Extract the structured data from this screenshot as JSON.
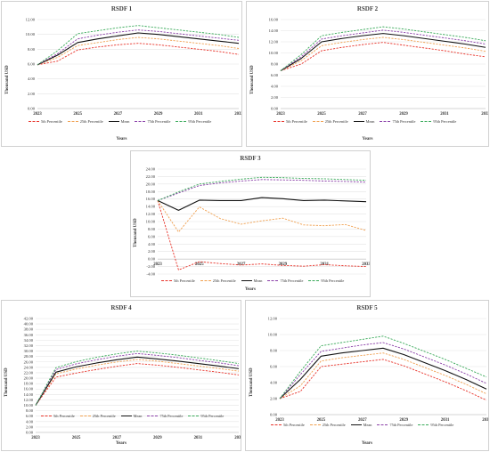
{
  "colors": {
    "p5": "#e8332a",
    "p25": "#f0a050",
    "mean": "#111111",
    "p75": "#8a3fa8",
    "p95": "#3aaa5a",
    "grid": "#e4e4e4",
    "axis": "#bbbbbb"
  },
  "legend_labels": [
    "5th Percentile",
    "25th Percentile",
    "Mean",
    "75th Percentile",
    "95th Percentile"
  ],
  "chart_data": [
    {
      "type": "line",
      "title": "RSDF 1",
      "xlabel": "Years",
      "ylabel": "Thousand USD",
      "x": [
        2023,
        2024,
        2025,
        2026,
        2027,
        2028,
        2029,
        2030,
        2031,
        2032,
        2033
      ],
      "xticks": [
        "2023",
        "2025",
        "2027",
        "2029",
        "2031",
        "2033"
      ],
      "yticks": [
        "0.00",
        "2.00",
        "4.00",
        "6.00",
        "8.00",
        "10.00",
        "12.00"
      ],
      "ylim": [
        0,
        12
      ],
      "series": [
        {
          "name": "5th Percentile",
          "values": [
            5.9,
            6.4,
            7.9,
            8.3,
            8.6,
            8.8,
            8.6,
            8.3,
            8.0,
            7.7,
            7.3
          ]
        },
        {
          "name": "25th Percentile",
          "values": [
            5.9,
            6.9,
            8.5,
            8.9,
            9.3,
            9.6,
            9.4,
            9.1,
            8.8,
            8.5,
            8.1
          ]
        },
        {
          "name": "Mean",
          "values": [
            5.9,
            7.2,
            8.9,
            9.4,
            9.8,
            10.2,
            10.0,
            9.7,
            9.4,
            9.1,
            8.8
          ]
        },
        {
          "name": "75th Percentile",
          "values": [
            5.9,
            7.4,
            9.4,
            9.9,
            10.3,
            10.6,
            10.4,
            10.1,
            9.8,
            9.5,
            9.2
          ]
        },
        {
          "name": "95th Percentile",
          "values": [
            5.9,
            7.8,
            10.1,
            10.5,
            10.9,
            11.2,
            10.9,
            10.6,
            10.3,
            10.0,
            9.6
          ]
        }
      ],
      "grid": true,
      "legend": "bottom"
    },
    {
      "type": "line",
      "title": "RSDF 2",
      "xlabel": "Years",
      "ylabel": "Thousand USD",
      "x": [
        2023,
        2024,
        2025,
        2026,
        2027,
        2028,
        2029,
        2030,
        2031,
        2032,
        2033
      ],
      "xticks": [
        "2023",
        "2025",
        "2027",
        "2029",
        "2031",
        "2033"
      ],
      "yticks": [
        "0.00",
        "2.00",
        "4.00",
        "6.00",
        "8.00",
        "10.00",
        "12.00",
        "14.00",
        "16.00"
      ],
      "ylim": [
        0,
        16
      ],
      "series": [
        {
          "name": "5th Percentile",
          "values": [
            6.8,
            8.0,
            10.4,
            11.0,
            11.5,
            11.9,
            11.4,
            10.9,
            10.4,
            9.8,
            9.3
          ]
        },
        {
          "name": "25th Percentile",
          "values": [
            6.8,
            8.6,
            11.3,
            11.9,
            12.4,
            12.8,
            12.4,
            11.9,
            11.4,
            10.9,
            10.3
          ]
        },
        {
          "name": "Mean",
          "values": [
            6.8,
            9.0,
            12.0,
            12.6,
            13.1,
            13.5,
            13.1,
            12.6,
            12.1,
            11.6,
            11.0
          ]
        },
        {
          "name": "75th Percentile",
          "values": [
            6.8,
            9.3,
            12.5,
            13.1,
            13.6,
            14.1,
            13.7,
            13.2,
            12.7,
            12.2,
            11.6
          ]
        },
        {
          "name": "95th Percentile",
          "values": [
            6.8,
            9.7,
            13.1,
            13.7,
            14.2,
            14.7,
            14.3,
            13.8,
            13.3,
            12.8,
            12.2
          ]
        }
      ],
      "grid": true,
      "legend": "bottom"
    },
    {
      "type": "line",
      "title": "RSDF 3",
      "xlabel": "Years",
      "ylabel": "Thousand USD",
      "x": [
        2023,
        2024,
        2025,
        2026,
        2027,
        2028,
        2029,
        2030,
        2031,
        2032,
        2033
      ],
      "xticks": [
        "2023",
        "2025",
        "2027",
        "2029",
        "2031",
        "2033"
      ],
      "yticks": [
        "-4.00",
        "-2.00",
        "0.00",
        "2.00",
        "4.00",
        "6.00",
        "8.00",
        "10.00",
        "12.00",
        "14.00",
        "16.00",
        "18.00",
        "20.00",
        "22.00",
        "24.00"
      ],
      "ylim": [
        -4,
        24
      ],
      "series": [
        {
          "name": "5th Percentile",
          "values": [
            15.6,
            -2.9,
            -0.7,
            -1.2,
            -1.6,
            -1.3,
            -1.7,
            -1.9,
            -1.5,
            -1.8,
            -2.0
          ]
        },
        {
          "name": "25th Percentile",
          "values": [
            15.6,
            7.2,
            13.9,
            10.8,
            9.3,
            10.2,
            10.9,
            9.1,
            8.9,
            9.2,
            7.6
          ]
        },
        {
          "name": "Mean",
          "values": [
            15.6,
            13.0,
            15.7,
            15.6,
            15.6,
            16.4,
            16.1,
            15.6,
            15.7,
            15.5,
            15.3
          ]
        },
        {
          "name": "75th Percentile",
          "values": [
            15.6,
            17.6,
            19.6,
            20.3,
            20.8,
            21.2,
            21.1,
            21.0,
            20.8,
            20.7,
            20.5
          ]
        },
        {
          "name": "95th Percentile",
          "values": [
            15.6,
            17.9,
            20.0,
            20.7,
            21.3,
            21.8,
            21.7,
            21.5,
            21.4,
            21.2,
            21.0
          ]
        }
      ],
      "grid": true,
      "legend": "bottom"
    },
    {
      "type": "line",
      "title": "RSDF 4",
      "xlabel": "Years",
      "ylabel": "Thousand USD",
      "x": [
        2023,
        2024,
        2025,
        2026,
        2027,
        2028,
        2029,
        2030,
        2031,
        2032,
        2033
      ],
      "xticks": [
        "2023",
        "2025",
        "2027",
        "2029",
        "2031",
        "2033"
      ],
      "yticks": [
        "0.00",
        "2.00",
        "4.00",
        "6.00",
        "8.00",
        "10.00",
        "12.00",
        "14.00",
        "16.00",
        "18.00",
        "20.00",
        "22.00",
        "24.00",
        "26.00",
        "28.00",
        "30.00",
        "32.00",
        "34.00",
        "36.00",
        "38.00",
        "40.00",
        "42.00"
      ],
      "ylim": [
        0,
        42
      ],
      "series": [
        {
          "name": "5th Percentile",
          "values": [
            10.0,
            20.4,
            21.9,
            23.2,
            24.4,
            25.4,
            24.8,
            24.0,
            23.1,
            22.2,
            21.2
          ]
        },
        {
          "name": "25th Percentile",
          "values": [
            10.0,
            21.6,
            23.4,
            24.8,
            26.0,
            26.9,
            26.3,
            25.4,
            24.5,
            23.6,
            22.6
          ]
        },
        {
          "name": "Mean",
          "values": [
            10.0,
            22.2,
            24.2,
            25.6,
            26.8,
            27.8,
            27.1,
            26.3,
            25.4,
            24.5,
            23.5
          ]
        },
        {
          "name": "75th Percentile",
          "values": [
            10.0,
            23.2,
            25.3,
            26.8,
            28.1,
            29.1,
            28.4,
            27.6,
            26.6,
            25.7,
            24.6
          ]
        },
        {
          "name": "95th Percentile",
          "values": [
            10.0,
            23.9,
            26.1,
            27.7,
            29.0,
            30.0,
            29.3,
            28.5,
            27.5,
            26.5,
            25.4
          ]
        }
      ],
      "grid": true,
      "legend": "bottom"
    },
    {
      "type": "line",
      "title": "RSDF 5",
      "xlabel": "Years",
      "ylabel": "Thousand USD",
      "x": [
        2023,
        2024,
        2025,
        2026,
        2027,
        2028,
        2029,
        2030,
        2031,
        2032,
        2033
      ],
      "xticks": [
        "2023",
        "2025",
        "2027",
        "2029",
        "2031",
        "2033"
      ],
      "yticks": [
        "0.00",
        "2.00",
        "4.00",
        "6.00",
        "8.00",
        "10.00",
        "12.00"
      ],
      "ylim": [
        0,
        12
      ],
      "series": [
        {
          "name": "5th Percentile",
          "values": [
            2.0,
            2.9,
            6.0,
            6.3,
            6.6,
            6.9,
            6.1,
            5.1,
            4.1,
            3.0,
            1.8
          ]
        },
        {
          "name": "25th Percentile",
          "values": [
            2.0,
            3.6,
            6.7,
            7.1,
            7.4,
            7.7,
            6.9,
            5.9,
            4.9,
            3.8,
            2.6
          ]
        },
        {
          "name": "Mean",
          "values": [
            2.0,
            4.4,
            7.3,
            7.7,
            8.0,
            8.3,
            7.5,
            6.5,
            5.5,
            4.4,
            3.2
          ]
        },
        {
          "name": "75th Percentile",
          "values": [
            2.0,
            5.0,
            7.9,
            8.3,
            8.7,
            9.0,
            8.2,
            7.2,
            6.2,
            5.1,
            3.9
          ]
        },
        {
          "name": "95th Percentile",
          "values": [
            2.0,
            5.4,
            8.6,
            9.0,
            9.4,
            9.8,
            8.9,
            7.9,
            6.9,
            5.8,
            4.7
          ]
        }
      ],
      "grid": true,
      "legend": "bottom"
    }
  ]
}
